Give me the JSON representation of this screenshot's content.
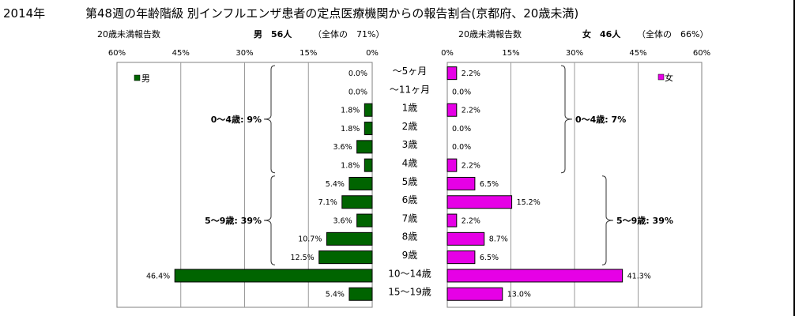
{
  "header": {
    "year": "2014年",
    "title": "第48週の年齢階級 別インフルエンザ患者の定点医療機関からの報告割合(京都府、20歳未満)",
    "left_caption": "20歳未満報告数",
    "left_sex_count": "男　56人",
    "left_share": "（全体の　71%）",
    "right_caption": "20歳未満報告数",
    "right_sex_count": "女　46人",
    "right_share": "（全体の　66%）"
  },
  "chart_data": {
    "type": "bar",
    "orientation": "horizontal-back-to-back",
    "categories": [
      "～5ヶ月",
      "～11ヶ月",
      "1歳",
      "2歳",
      "3歳",
      "4歳",
      "5歳",
      "6歳",
      "7歳",
      "8歳",
      "9歳",
      "10～14歳",
      "15～19歳"
    ],
    "series": [
      {
        "name": "男",
        "side": "left",
        "color": "#006400",
        "values": [
          0.0,
          0.0,
          1.8,
          1.8,
          3.6,
          1.8,
          5.4,
          7.1,
          3.6,
          10.7,
          12.5,
          46.4,
          5.4
        ],
        "labels": [
          "0.0%",
          "0.0%",
          "1.8%",
          "1.8%",
          "3.6%",
          "1.8%",
          "5.4%",
          "7.1%",
          "3.6%",
          "10.7%",
          "12.5%",
          "46.4%",
          "5.4%"
        ]
      },
      {
        "name": "女",
        "side": "right",
        "color": "#E600E6",
        "values": [
          2.2,
          0.0,
          2.2,
          0.0,
          0.0,
          2.2,
          6.5,
          15.2,
          2.2,
          8.7,
          6.5,
          41.3,
          13.0
        ],
        "labels": [
          "2.2%",
          "0.0%",
          "2.2%",
          "0.0%",
          "0.0%",
          "2.2%",
          "6.5%",
          "15.2%",
          "2.2%",
          "8.7%",
          "6.5%",
          "41.3%",
          "13.0%"
        ]
      }
    ],
    "xlim": [
      0,
      60
    ],
    "left_ticks": [
      "60%",
      "45%",
      "30%",
      "15%",
      "0%"
    ],
    "right_ticks": [
      "0%",
      "15%",
      "30%",
      "45%",
      "60%"
    ],
    "grid": true,
    "legend_position": "top-outer-corners",
    "annotations": [
      {
        "side": "left",
        "text": "0～4歳: 9%",
        "from_category": 0,
        "to_category": 5
      },
      {
        "side": "left",
        "text": "5～9歳: 39%",
        "from_category": 6,
        "to_category": 10
      },
      {
        "side": "right",
        "text": "0～4歳: 7%",
        "from_category": 0,
        "to_category": 5
      },
      {
        "side": "right",
        "text": "5～9歳: 39%",
        "from_category": 6,
        "to_category": 10
      }
    ]
  }
}
